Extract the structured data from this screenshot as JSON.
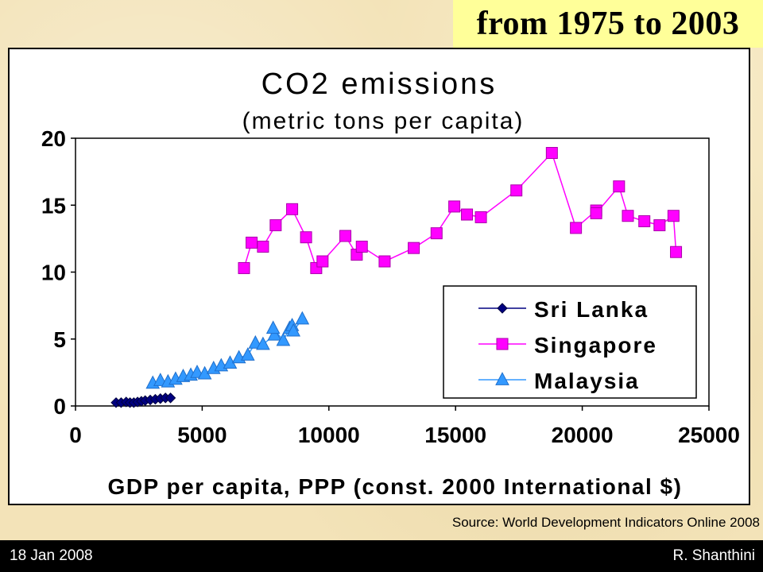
{
  "slide": {
    "headline": "from 1975 to 2003",
    "source": "Source: World Development Indicators Online 2008",
    "date": "18 Jan 2008",
    "author": "R. Shanthini"
  },
  "chart_data": {
    "type": "scatter",
    "title": "CO2 emissions",
    "subtitle": "(metric tons per capita)",
    "xlabel": "GDP per capita, PPP (const. 2000 International $)",
    "ylabel": "",
    "xlim": [
      0,
      25000
    ],
    "ylim": [
      0,
      20
    ],
    "xticks": [
      0,
      5000,
      10000,
      15000,
      20000,
      25000
    ],
    "yticks": [
      0,
      5,
      10,
      15,
      20
    ],
    "grid": false,
    "legend": "right, inside plot",
    "series": [
      {
        "name": "Sri Lanka",
        "marker": "diamond",
        "color": "#000080",
        "points": [
          [
            1600,
            0.25
          ],
          [
            1800,
            0.25
          ],
          [
            2000,
            0.3
          ],
          [
            2150,
            0.25
          ],
          [
            2300,
            0.25
          ],
          [
            2450,
            0.3
          ],
          [
            2600,
            0.35
          ],
          [
            2750,
            0.4
          ],
          [
            2950,
            0.45
          ],
          [
            3150,
            0.5
          ],
          [
            3350,
            0.55
          ],
          [
            3550,
            0.6
          ],
          [
            3750,
            0.6
          ]
        ]
      },
      {
        "name": "Singapore",
        "marker": "square",
        "color": "#ff00ff",
        "points": [
          [
            6650,
            10.3
          ],
          [
            6950,
            12.2
          ],
          [
            7400,
            11.9
          ],
          [
            7900,
            13.5
          ],
          [
            8550,
            14.7
          ],
          [
            9100,
            12.6
          ],
          [
            9500,
            10.3
          ],
          [
            9750,
            10.8
          ],
          [
            10650,
            12.7
          ],
          [
            11100,
            11.3
          ],
          [
            11300,
            11.9
          ],
          [
            12200,
            10.8
          ],
          [
            13350,
            11.8
          ],
          [
            14250,
            12.9
          ],
          [
            14950,
            14.9
          ],
          [
            15450,
            14.3
          ],
          [
            16000,
            14.1
          ],
          [
            17400,
            16.1
          ],
          [
            18800,
            18.9
          ],
          [
            19750,
            13.3
          ],
          [
            20550,
            14.6
          ],
          [
            20550,
            14.4
          ],
          [
            21450,
            16.4
          ],
          [
            21800,
            14.2
          ],
          [
            22450,
            13.8
          ],
          [
            23050,
            13.5
          ],
          [
            23600,
            14.2
          ],
          [
            23700,
            11.5
          ]
        ]
      },
      {
        "name": "Malaysia",
        "marker": "triangle",
        "color": "#3399ff",
        "points": [
          [
            3050,
            1.7
          ],
          [
            3350,
            1.9
          ],
          [
            3650,
            1.8
          ],
          [
            3950,
            2.0
          ],
          [
            4250,
            2.2
          ],
          [
            4550,
            2.3
          ],
          [
            4800,
            2.5
          ],
          [
            5100,
            2.4
          ],
          [
            5450,
            2.8
          ],
          [
            5750,
            3.0
          ],
          [
            6100,
            3.2
          ],
          [
            6450,
            3.6
          ],
          [
            6800,
            3.8
          ],
          [
            7100,
            4.7
          ],
          [
            7400,
            4.6
          ],
          [
            7850,
            5.3
          ],
          [
            7800,
            5.8
          ],
          [
            8200,
            4.9
          ],
          [
            8450,
            5.8
          ],
          [
            8550,
            6.0
          ],
          [
            8600,
            5.6
          ],
          [
            8950,
            6.5
          ]
        ]
      }
    ]
  }
}
